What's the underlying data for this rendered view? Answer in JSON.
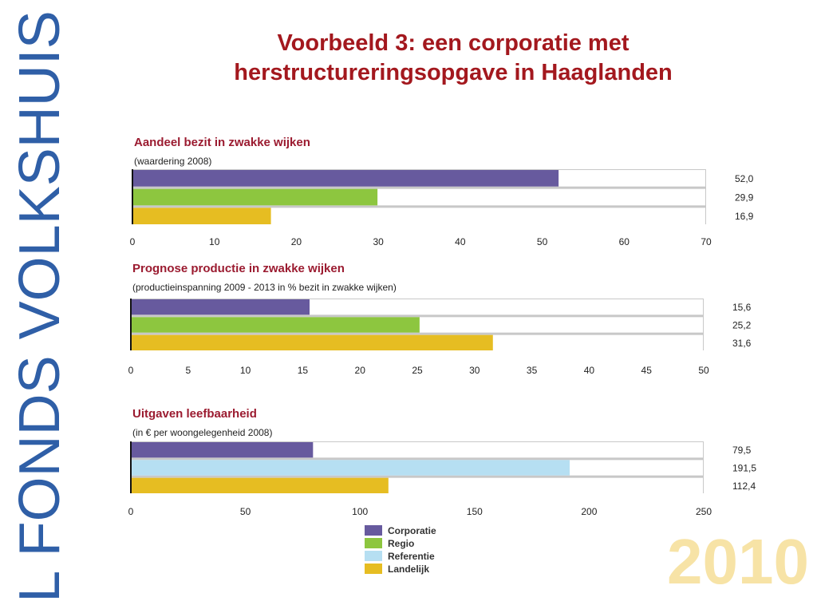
{
  "sidebar_text": "L FONDS VOLKSHUIS",
  "title_line1": "Voorbeeld 3: een corporatie met",
  "title_line2": "herstructureringsopgave in Haaglanden",
  "year": "2010",
  "colors": {
    "Corporatie": "#675a9e",
    "Regio": "#8dc63f",
    "Referentie": "#b6dff2",
    "Landelijk": "#e6bd22",
    "title": "#a3181e",
    "chart_title": "#9b1b30",
    "sidebar": "#2f5fa7"
  },
  "chart_data": [
    {
      "type": "bar",
      "orientation": "horizontal",
      "title": "Aandeel bezit in zwakke wijken",
      "subtitle": "(waardering 2008)",
      "series": [
        {
          "name": "Corporatie",
          "value": 52.0,
          "label": "52,0"
        },
        {
          "name": "Regio",
          "value": 29.9,
          "label": "29,9"
        },
        {
          "name": "Landelijk",
          "value": 16.9,
          "label": "16,9"
        }
      ],
      "xlim": [
        0,
        70
      ],
      "ticks": [
        0,
        10,
        20,
        30,
        40,
        50,
        60,
        70
      ],
      "grid": false
    },
    {
      "type": "bar",
      "orientation": "horizontal",
      "title": "Prognose productie in zwakke wijken",
      "subtitle": "(productieinspanning 2009 - 2013 in % bezit in zwakke wijken)",
      "series": [
        {
          "name": "Corporatie",
          "value": 15.6,
          "label": "15,6"
        },
        {
          "name": "Regio",
          "value": 25.2,
          "label": "25,2"
        },
        {
          "name": "Landelijk",
          "value": 31.6,
          "label": "31,6"
        }
      ],
      "xlim": [
        0,
        50
      ],
      "ticks": [
        0,
        5,
        10,
        15,
        20,
        25,
        30,
        35,
        40,
        45,
        50
      ],
      "grid": false
    },
    {
      "type": "bar",
      "orientation": "horizontal",
      "title": "Uitgaven leefbaarheid",
      "subtitle": "(in € per woongelegenheid 2008)",
      "series": [
        {
          "name": "Corporatie",
          "value": 79.5,
          "label": "79,5"
        },
        {
          "name": "Referentie",
          "value": 191.5,
          "label": "191,5"
        },
        {
          "name": "Landelijk",
          "value": 112.4,
          "label": "112,4"
        }
      ],
      "xlim": [
        0,
        250
      ],
      "ticks": [
        0,
        50,
        100,
        150,
        200,
        250
      ],
      "grid": false
    }
  ],
  "legend": {
    "placement": "bottom-center",
    "items": [
      "Corporatie",
      "Regio",
      "Referentie",
      "Landelijk"
    ]
  }
}
